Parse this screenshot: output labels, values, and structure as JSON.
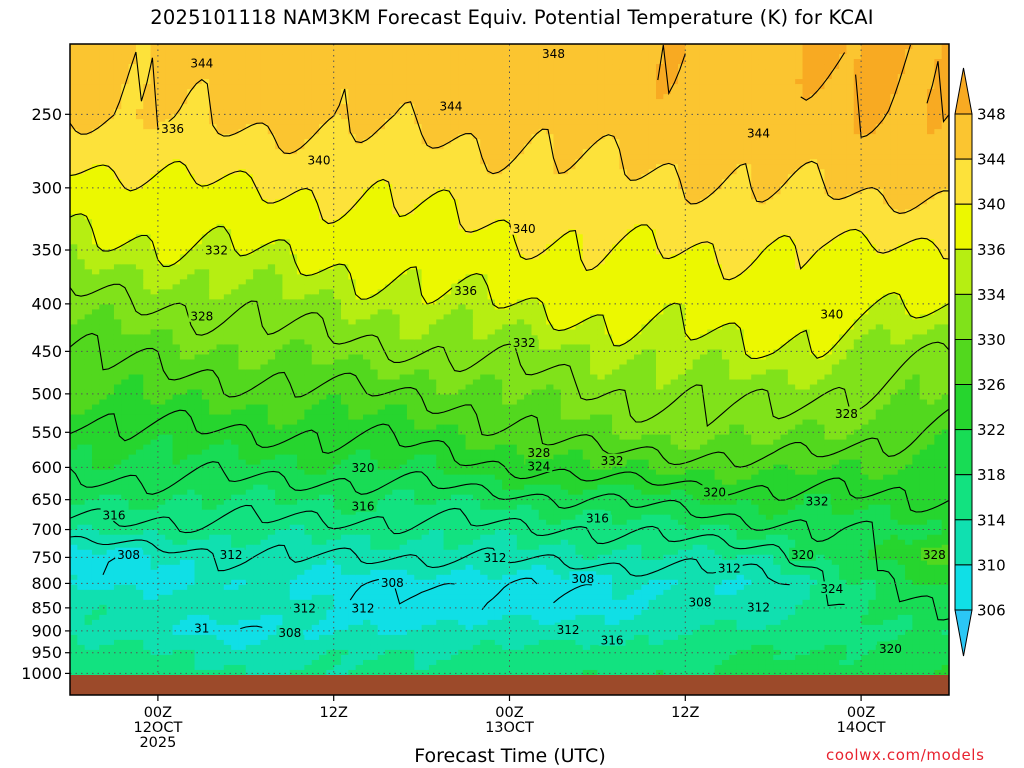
{
  "chart_data": {
    "type": "heatmap",
    "title": "2025101118 NAM3KM Forecast Equiv. Potential Temperature (K) for KCAI",
    "xlabel": "Forecast Time (UTC)",
    "ylabel": "",
    "y_scale": "log-pressure",
    "y_ticks": [
      250,
      300,
      350,
      400,
      450,
      500,
      550,
      600,
      650,
      700,
      750,
      800,
      850,
      900,
      950,
      1000
    ],
    "y_tick_labels": [
      "250",
      "300",
      "350",
      "400",
      "450",
      "500",
      "550",
      "600",
      "650",
      "700",
      "750",
      "800",
      "850",
      "900",
      "950",
      "1000"
    ],
    "x_ticks": [
      {
        "lines": [
          "00Z",
          "12OCT",
          "2025"
        ],
        "hour": 6
      },
      {
        "lines": [
          "12Z"
        ],
        "hour": 18
      },
      {
        "lines": [
          "00Z",
          "13OCT"
        ],
        "hour": 30
      },
      {
        "lines": [
          "12Z"
        ],
        "hour": 42
      },
      {
        "lines": [
          "00Z",
          "14OCT"
        ],
        "hour": 54
      }
    ],
    "x_range_hours": [
      0,
      60
    ],
    "colorbar": {
      "labels": [
        "306",
        "310",
        "314",
        "318",
        "322",
        "326",
        "330",
        "334",
        "336",
        "340",
        "344",
        "348"
      ],
      "levels": [
        306,
        310,
        314,
        318,
        322,
        326,
        330,
        334,
        336,
        340,
        344,
        348
      ],
      "colors": [
        "#2bc7f5",
        "#10dfe6",
        "#10e0b0",
        "#12e280",
        "#18dc55",
        "#26d52e",
        "#52d81e",
        "#80e21a",
        "#b6ee12",
        "#ecf800",
        "#fde23a",
        "#fbc530",
        "#f8aa22"
      ]
    },
    "contour_levels": [
      304,
      308,
      312,
      316,
      320,
      324,
      328,
      332,
      336,
      340,
      344,
      348
    ],
    "profile_times": [
      {
        "hour": 0,
        "theta_e": [
          [
            250,
            344
          ],
          [
            300,
            338
          ],
          [
            350,
            335
          ],
          [
            400,
            331
          ],
          [
            450,
            328
          ],
          [
            500,
            326
          ],
          [
            550,
            323
          ],
          [
            600,
            321
          ],
          [
            650,
            318
          ],
          [
            700,
            315
          ],
          [
            750,
            308
          ],
          [
            800,
            309
          ],
          [
            850,
            313
          ],
          [
            900,
            313
          ],
          [
            950,
            316
          ],
          [
            1000,
            316
          ]
        ]
      },
      {
        "hour": 12,
        "theta_e": [
          [
            250,
            345
          ],
          [
            300,
            340
          ],
          [
            350,
            336
          ],
          [
            400,
            333
          ],
          [
            450,
            330
          ],
          [
            500,
            327
          ],
          [
            550,
            324
          ],
          [
            600,
            321
          ],
          [
            650,
            318
          ],
          [
            700,
            315
          ],
          [
            750,
            312
          ],
          [
            800,
            310
          ],
          [
            850,
            312
          ],
          [
            900,
            308
          ],
          [
            950,
            312
          ],
          [
            1000,
            314
          ]
        ]
      },
      {
        "hour": 24,
        "theta_e": [
          [
            250,
            345
          ],
          [
            300,
            341
          ],
          [
            350,
            338
          ],
          [
            400,
            335
          ],
          [
            450,
            332
          ],
          [
            500,
            328
          ],
          [
            550,
            325
          ],
          [
            600,
            322
          ],
          [
            650,
            318
          ],
          [
            700,
            315
          ],
          [
            750,
            312
          ],
          [
            800,
            308
          ],
          [
            850,
            307
          ],
          [
            900,
            311
          ],
          [
            950,
            314
          ],
          [
            1000,
            315
          ]
        ]
      },
      {
        "hour": 36,
        "theta_e": [
          [
            250,
            346
          ],
          [
            300,
            343
          ],
          [
            350,
            340
          ],
          [
            400,
            337
          ],
          [
            450,
            334
          ],
          [
            500,
            332
          ],
          [
            550,
            330
          ],
          [
            600,
            326
          ],
          [
            650,
            320
          ],
          [
            700,
            316
          ],
          [
            750,
            313
          ],
          [
            800,
            309
          ],
          [
            850,
            309
          ],
          [
            900,
            312
          ],
          [
            950,
            316
          ],
          [
            1000,
            317
          ]
        ]
      },
      {
        "hour": 48,
        "theta_e": [
          [
            250,
            347
          ],
          [
            300,
            344
          ],
          [
            350,
            340
          ],
          [
            400,
            338
          ],
          [
            450,
            336
          ],
          [
            500,
            333
          ],
          [
            550,
            331
          ],
          [
            600,
            327
          ],
          [
            650,
            323
          ],
          [
            700,
            319
          ],
          [
            750,
            314
          ],
          [
            800,
            311
          ],
          [
            850,
            313
          ],
          [
            900,
            315
          ],
          [
            950,
            318
          ],
          [
            1000,
            319
          ]
        ]
      },
      {
        "hour": 60,
        "theta_e": [
          [
            250,
            348
          ],
          [
            300,
            345
          ],
          [
            350,
            339
          ],
          [
            400,
            336
          ],
          [
            450,
            332
          ],
          [
            500,
            330
          ],
          [
            550,
            327
          ],
          [
            600,
            325
          ],
          [
            650,
            324
          ],
          [
            700,
            322
          ],
          [
            750,
            328
          ],
          [
            800,
            324
          ],
          [
            850,
            321
          ],
          [
            900,
            318
          ],
          [
            950,
            320
          ],
          [
            1000,
            321
          ]
        ]
      }
    ],
    "contour_labels": [
      {
        "text": "348",
        "hour": 33,
        "p": 215
      },
      {
        "text": "344",
        "hour": 9,
        "p": 220
      },
      {
        "text": "344",
        "hour": 26,
        "p": 245
      },
      {
        "text": "344",
        "hour": 47,
        "p": 262
      },
      {
        "text": "336",
        "hour": 7,
        "p": 259
      },
      {
        "text": "340",
        "hour": 17,
        "p": 280
      },
      {
        "text": "340",
        "hour": 31,
        "p": 332
      },
      {
        "text": "332",
        "hour": 10,
        "p": 350
      },
      {
        "text": "336",
        "hour": 27,
        "p": 387
      },
      {
        "text": "340",
        "hour": 52,
        "p": 410
      },
      {
        "text": "328",
        "hour": 9,
        "p": 412
      },
      {
        "text": "332",
        "hour": 31,
        "p": 440
      },
      {
        "text": "328",
        "hour": 53,
        "p": 525
      },
      {
        "text": "328",
        "hour": 32,
        "p": 578
      },
      {
        "text": "332",
        "hour": 37,
        "p": 590
      },
      {
        "text": "324",
        "hour": 32,
        "p": 598
      },
      {
        "text": "320",
        "hour": 20,
        "p": 600
      },
      {
        "text": "320",
        "hour": 44,
        "p": 638
      },
      {
        "text": "332",
        "hour": 51,
        "p": 652
      },
      {
        "text": "316",
        "hour": 20,
        "p": 660
      },
      {
        "text": "316",
        "hour": 3,
        "p": 675
      },
      {
        "text": "316",
        "hour": 36,
        "p": 680
      },
      {
        "text": "320",
        "hour": 50,
        "p": 745
      },
      {
        "text": "328",
        "hour": 59,
        "p": 745
      },
      {
        "text": "308",
        "hour": 4,
        "p": 745
      },
      {
        "text": "312",
        "hour": 11,
        "p": 745
      },
      {
        "text": "312",
        "hour": 29,
        "p": 750
      },
      {
        "text": "312",
        "hour": 45,
        "p": 770
      },
      {
        "text": "308",
        "hour": 35,
        "p": 790
      },
      {
        "text": "308",
        "hour": 22,
        "p": 798
      },
      {
        "text": "324",
        "hour": 52,
        "p": 810
      },
      {
        "text": "308",
        "hour": 43,
        "p": 838
      },
      {
        "text": "312",
        "hour": 47,
        "p": 848
      },
      {
        "text": "312",
        "hour": 16,
        "p": 850
      },
      {
        "text": "312",
        "hour": 20,
        "p": 850
      },
      {
        "text": "31",
        "hour": 9,
        "p": 893
      },
      {
        "text": "312",
        "hour": 34,
        "p": 897
      },
      {
        "text": "308",
        "hour": 15,
        "p": 903
      },
      {
        "text": "316",
        "hour": 37,
        "p": 920
      },
      {
        "text": "320",
        "hour": 56,
        "p": 940
      }
    ]
  },
  "page": {
    "title": "2025101118 NAM3KM Forecast Equiv. Potential Temperature (K) for KCAI",
    "xlabel": "Forecast Time (UTC)",
    "credit": "coolwx.com/models"
  }
}
